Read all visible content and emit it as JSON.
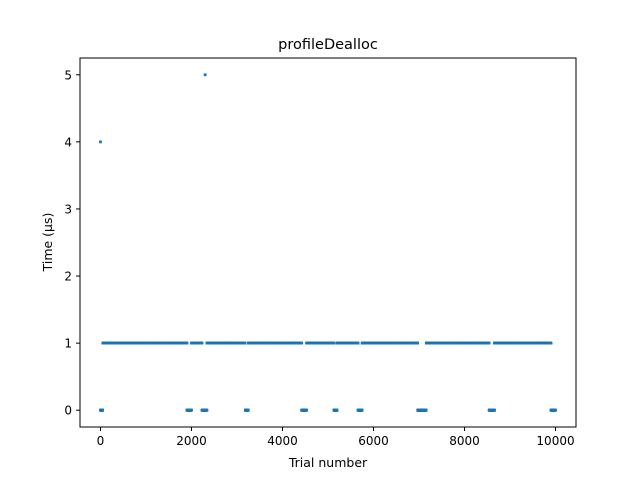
{
  "chart_data": {
    "type": "scatter",
    "title": "profileDealloc",
    "xlabel": "Trial number",
    "ylabel": "Time (µs)",
    "xlim": [
      -450,
      10450
    ],
    "ylim": [
      -0.25,
      5.25
    ],
    "xticks": [
      0,
      2000,
      4000,
      6000,
      8000,
      10000
    ],
    "yticks": [
      0,
      1,
      2,
      3,
      4,
      5
    ],
    "marker_color": "#1f77b4",
    "grid": false,
    "legend": "none",
    "n_points": 10000,
    "series": [
      {
        "outliers": [
          {
            "x": 0,
            "y": 4
          },
          {
            "x": 2300,
            "y": 5
          }
        ],
        "band_values": [
          0,
          1
        ],
        "band_y0_range": [
          0,
          9999
        ],
        "band_y1_runs": [
          [
            50,
            1900
          ],
          [
            2000,
            2230
          ],
          [
            2340,
            3180
          ],
          [
            3250,
            4420
          ],
          [
            4530,
            5130
          ],
          [
            5200,
            5660
          ],
          [
            5750,
            6970
          ],
          [
            7160,
            8540
          ],
          [
            8660,
            9900
          ]
        ]
      }
    ]
  }
}
